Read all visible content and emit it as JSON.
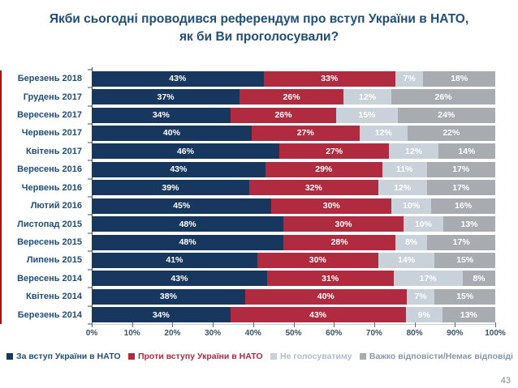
{
  "page_number": "43",
  "chart_data": {
    "type": "bar",
    "orientation": "horizontal",
    "stacked": true,
    "title": "Якби сьогодні проводився референдум про вступ України в НАТО, як би Ви проголосували?",
    "title_lines": [
      "Якби сьогодні проводився референдум про вступ України в НАТО,",
      "як би Ви проголосували?"
    ],
    "categories": [
      "Березень 2018",
      "Грудень 2017",
      "Вересень 2017",
      "Червень 2017",
      "Квітень 2017",
      "Вересень 2016",
      "Червень 2016",
      "Лютий 2016",
      "Листопад 2015",
      "Вересень 2015",
      "Липень 2015",
      "Вересень 2014",
      "Квітень 2014",
      "Березень 2014"
    ],
    "series": [
      {
        "key": "for-nato",
        "name": "За вступ України в НАТО",
        "color": "#17375E",
        "legend_text_color": "#1F4E79",
        "values": [
          43,
          37,
          34,
          40,
          46,
          43,
          39,
          45,
          48,
          48,
          41,
          43,
          38,
          34
        ]
      },
      {
        "key": "against-nato",
        "name": "Проти вступу України в НАТО",
        "color": "#B02B40",
        "legend_text_color": "#B02B40",
        "values": [
          33,
          26,
          26,
          27,
          27,
          29,
          32,
          30,
          30,
          28,
          30,
          31,
          40,
          43
        ]
      },
      {
        "key": "wont-vote",
        "name": "Не голосуватиму",
        "color": "#C9D2DB",
        "legend_text_color": "#AEBDCB",
        "values": [
          7,
          12,
          15,
          12,
          12,
          11,
          12,
          10,
          10,
          8,
          14,
          17,
          7,
          9
        ]
      },
      {
        "key": "hard-to-say",
        "name": "Важко відповісти/Немає відповіді",
        "color": "#A8ACB1",
        "legend_text_color": "#8698A8",
        "values": [
          18,
          26,
          24,
          22,
          14,
          17,
          17,
          16,
          13,
          17,
          15,
          8,
          15,
          13
        ]
      }
    ],
    "value_suffix": "%",
    "x_ticks": [
      "0%",
      "10%",
      "20%",
      "30%",
      "40%",
      "50%",
      "60%",
      "70%",
      "80%",
      "90%",
      "100%"
    ],
    "xlim": [
      0,
      100
    ],
    "grid": false,
    "legend_position": "bottom"
  }
}
